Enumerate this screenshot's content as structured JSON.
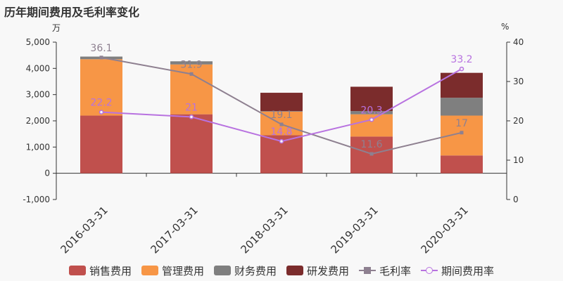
{
  "title": "历年期间费用及毛利率变化",
  "left_unit": "万",
  "right_unit": "%",
  "colors": {
    "sales": "#c0504d",
    "admin": "#f79646",
    "finance": "#7f7f7f",
    "rnd": "#7b2c2c",
    "gross": "#8e8090",
    "period": "#b872e0"
  },
  "legend": [
    {
      "key": "sales",
      "label": "销售费用",
      "kind": "bar"
    },
    {
      "key": "admin",
      "label": "管理费用",
      "kind": "bar"
    },
    {
      "key": "finance",
      "label": "财务费用",
      "kind": "bar"
    },
    {
      "key": "rnd",
      "label": "研发费用",
      "kind": "bar"
    },
    {
      "key": "gross",
      "label": "毛利率",
      "kind": "line-square"
    },
    {
      "key": "period",
      "label": "期间费用率",
      "kind": "line-circle"
    }
  ],
  "chart_data": {
    "type": "bar",
    "stacked": true,
    "categories": [
      "2016-03-31",
      "2017-03-31",
      "2018-03-31",
      "2019-03-31",
      "2020-03-31"
    ],
    "y_left": {
      "min": -1000,
      "max": 5000,
      "ticks": [
        "-1,000",
        "0",
        "1,000",
        "2,000",
        "3,000",
        "4,000",
        "5,000"
      ],
      "tick_values": [
        -1000,
        0,
        1000,
        2000,
        3000,
        4000,
        5000
      ]
    },
    "y_right": {
      "min": 0,
      "max": 40,
      "ticks": [
        "0",
        "10",
        "20",
        "30",
        "40"
      ],
      "tick_values": [
        0,
        10,
        20,
        30,
        40
      ]
    },
    "series": [
      {
        "key": "sales",
        "name": "销售费用",
        "values": [
          2200,
          2250,
          1450,
          1400,
          680
        ]
      },
      {
        "key": "admin",
        "name": "管理费用",
        "values": [
          2150,
          1900,
          900,
          850,
          1520
        ]
      },
      {
        "key": "finance",
        "name": "财务费用",
        "values": [
          100,
          120,
          20,
          120,
          680
        ]
      },
      {
        "key": "rnd",
        "name": "研发费用",
        "values": [
          0,
          0,
          700,
          930,
          950
        ]
      }
    ],
    "lines": [
      {
        "key": "gross",
        "name": "毛利率",
        "axis": "right",
        "marker": "square",
        "values": [
          36.1,
          31.9,
          19.1,
          11.6,
          17
        ],
        "labels": [
          "36.1",
          "31.9",
          "19.1",
          "11.6",
          "17"
        ]
      },
      {
        "key": "period",
        "name": "期间费用率",
        "axis": "right",
        "marker": "circle",
        "values": [
          22.2,
          21,
          14.8,
          20.3,
          33.2
        ],
        "labels": [
          "22.2",
          "21",
          "14.8",
          "20.3",
          "33.2"
        ]
      }
    ]
  }
}
